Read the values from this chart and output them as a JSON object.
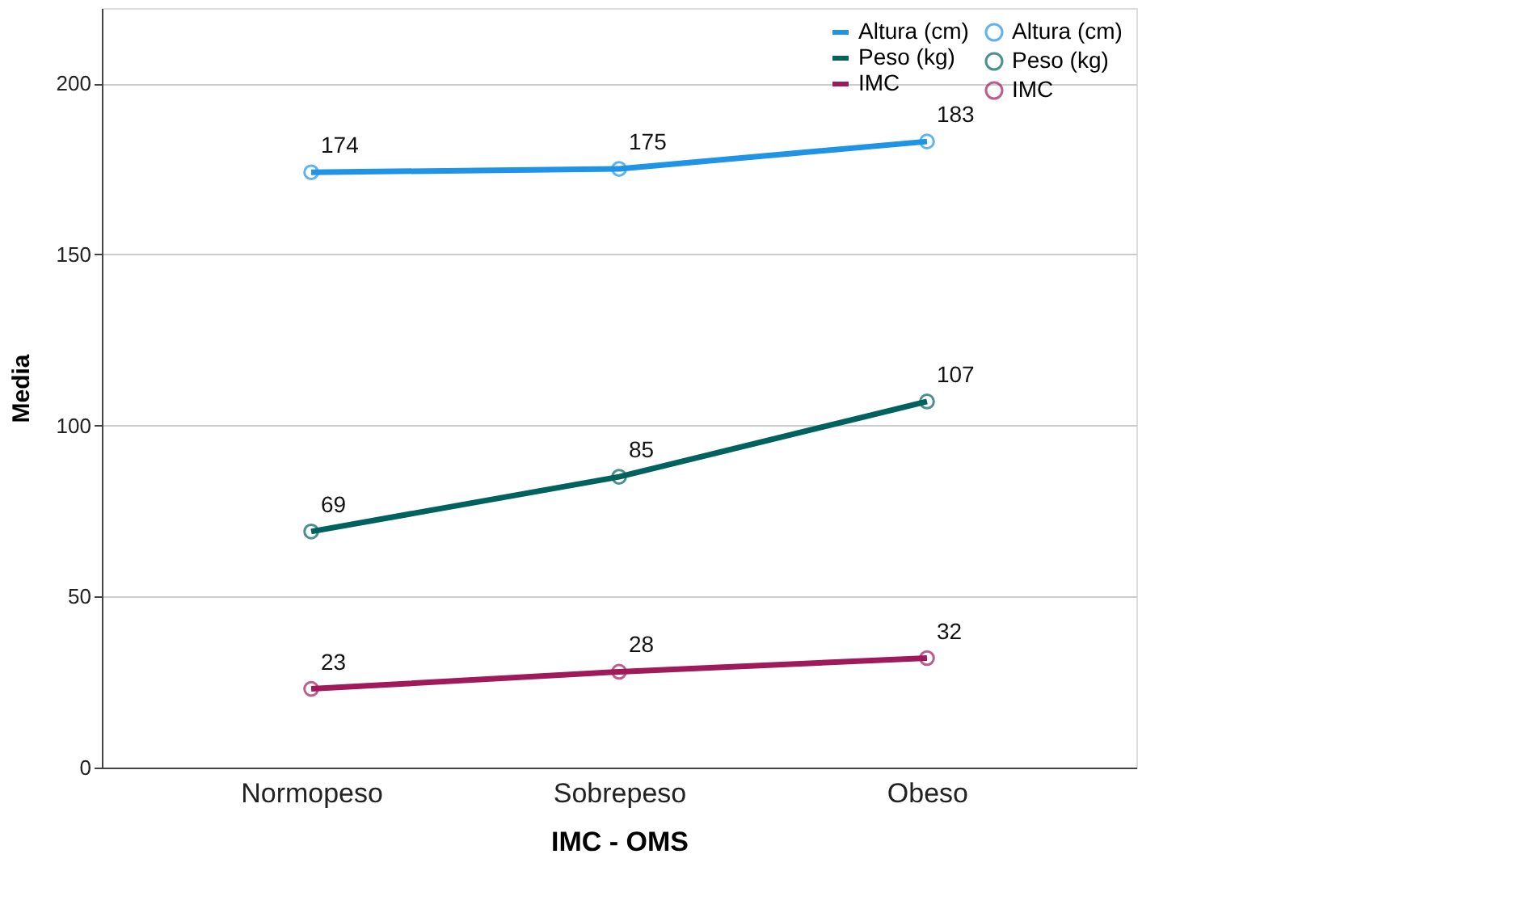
{
  "chart_data": {
    "type": "line",
    "xlabel": "IMC - OMS",
    "ylabel": "Media",
    "categories": [
      "Normopeso",
      "Sobrepeso",
      "Obeso"
    ],
    "series": [
      {
        "name": "Altura (cm)",
        "color": "#1f93e6",
        "values": [
          174,
          175,
          183
        ]
      },
      {
        "name": "Peso (kg)",
        "color": "#00625e",
        "values": [
          69,
          85,
          107
        ]
      },
      {
        "name": "IMC",
        "color": "#a0195a",
        "values": [
          23,
          28,
          32
        ]
      }
    ],
    "ylim": [
      0,
      222
    ],
    "yticks": [
      0,
      50,
      100,
      150,
      200
    ],
    "grid": "y",
    "legend": "top right",
    "marker": "circle",
    "line_style": "solid",
    "data_labels": true
  }
}
